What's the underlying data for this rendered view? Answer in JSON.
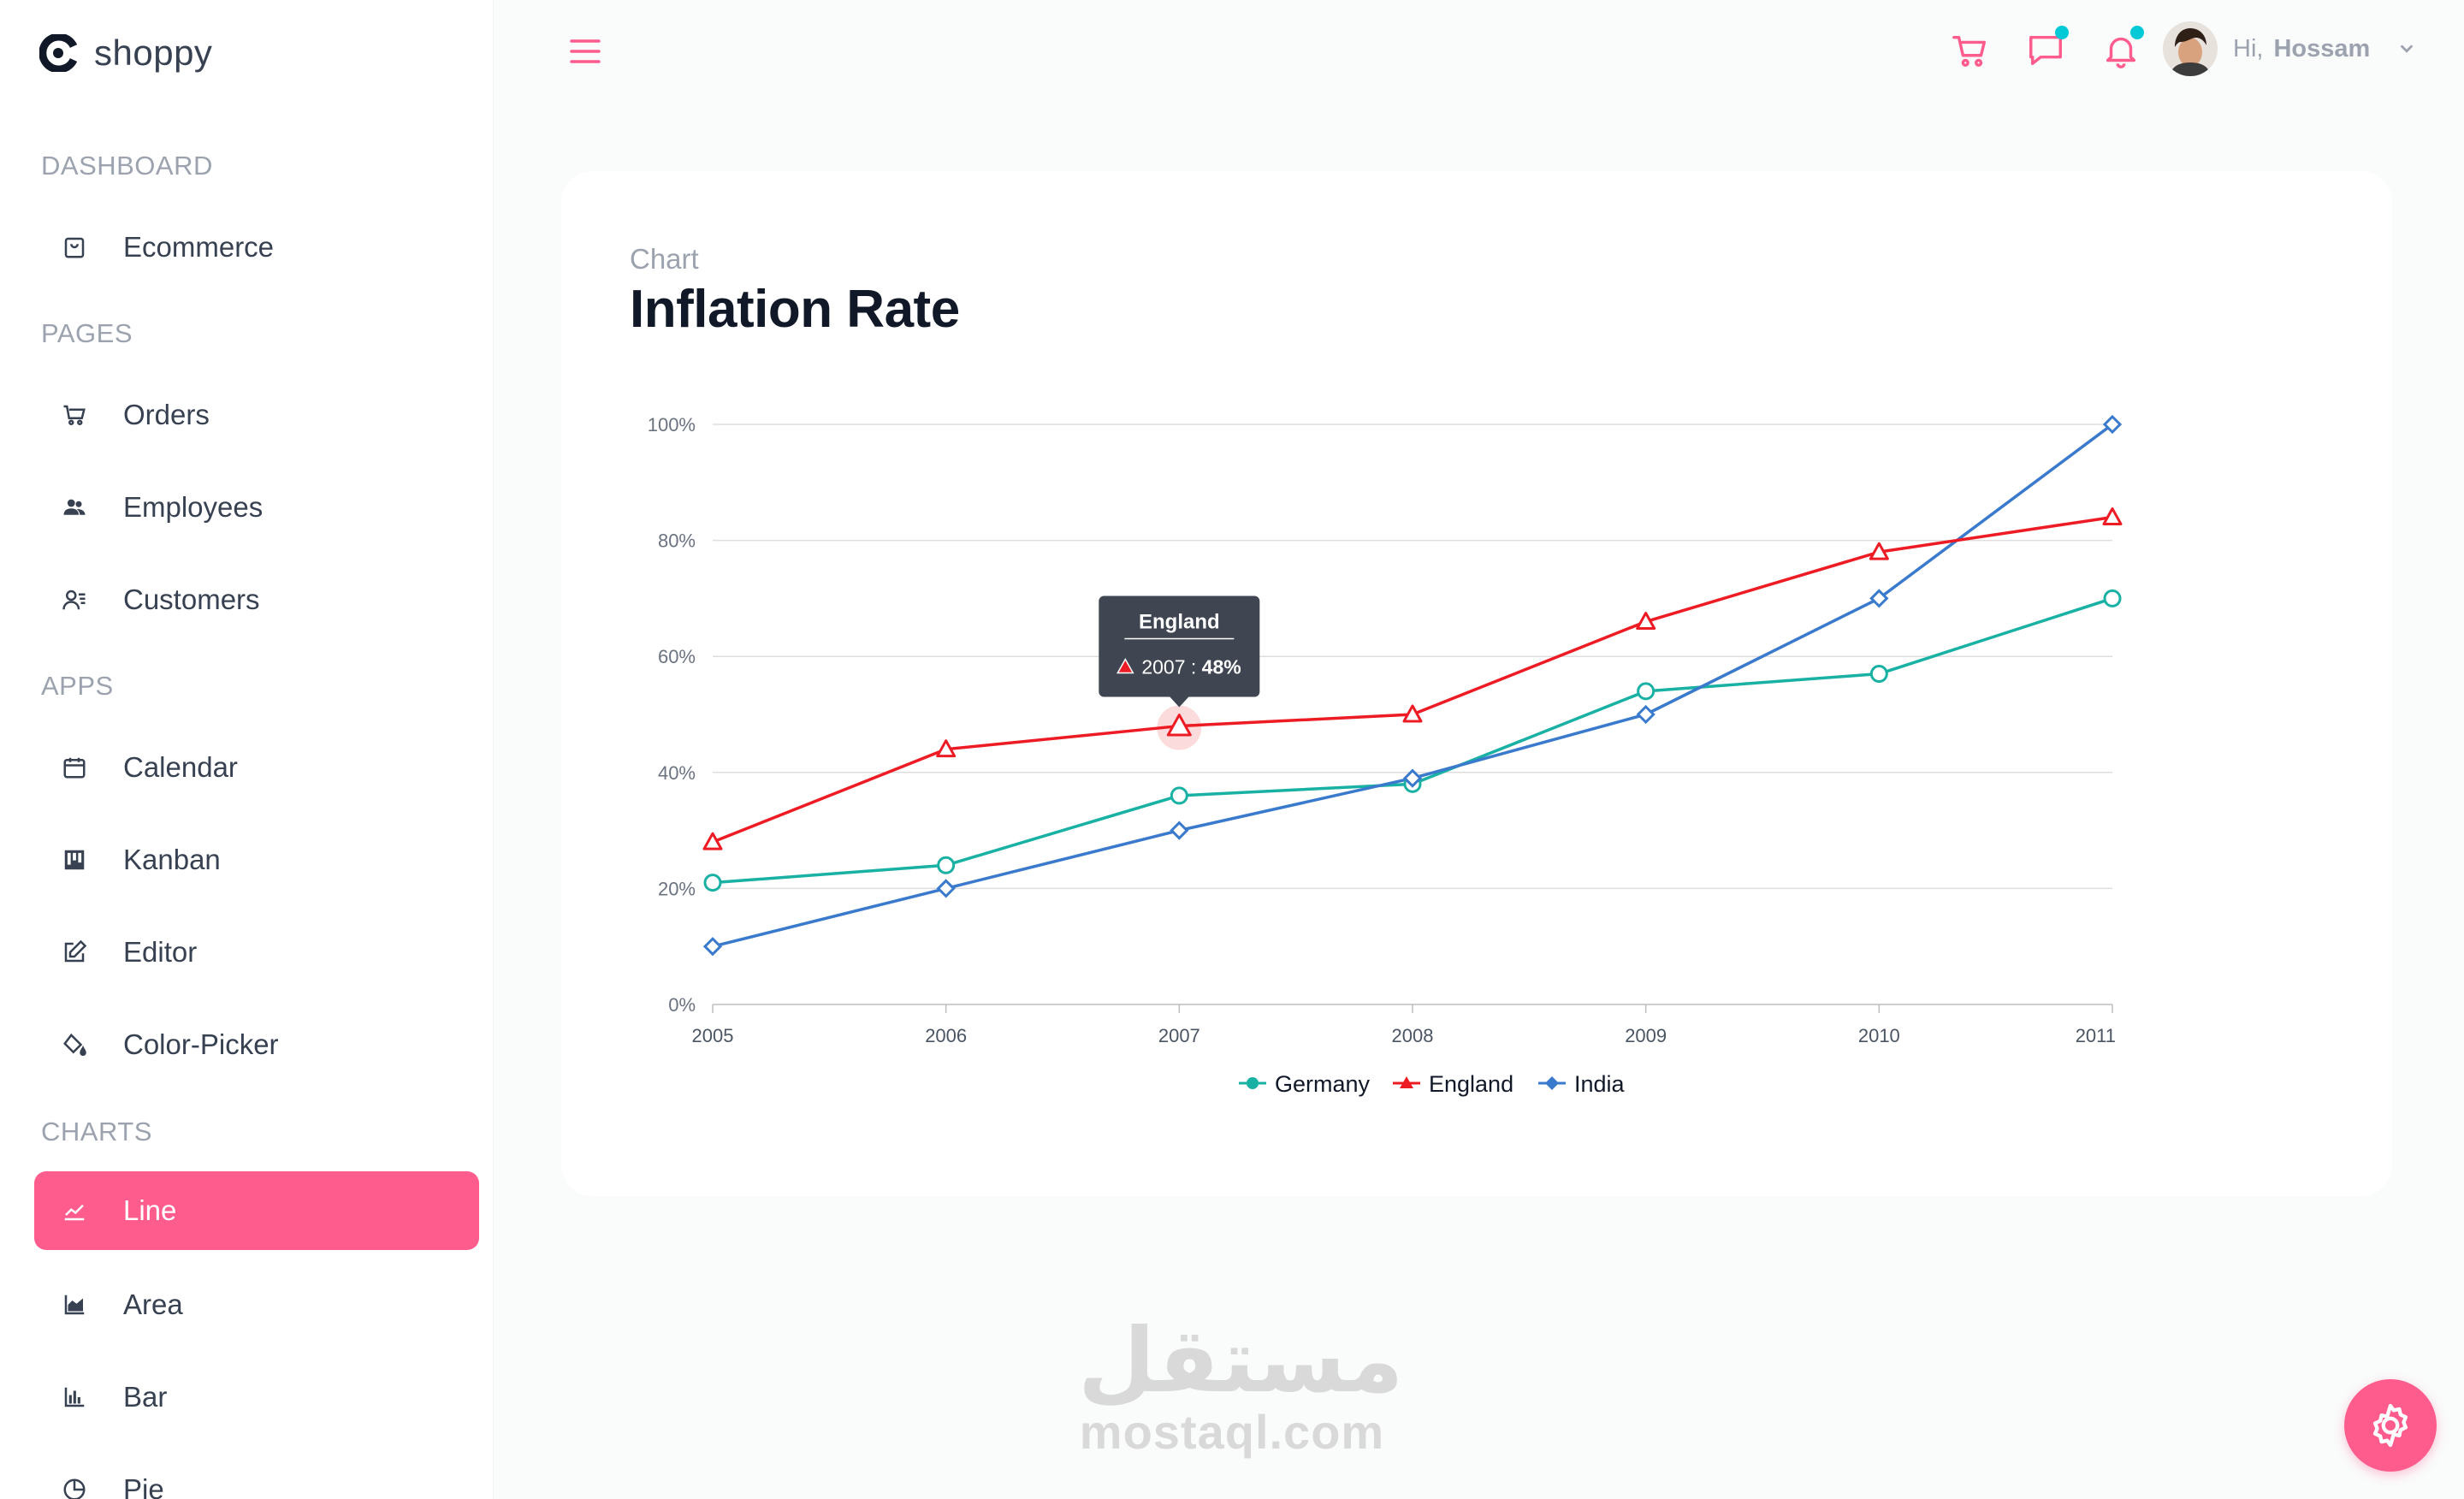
{
  "brand": {
    "name": "shoppy"
  },
  "sidebar": {
    "sections": [
      {
        "title": "DASHBOARD",
        "items": [
          {
            "label": "Ecommerce",
            "icon": "shopping-bag-icon"
          }
        ]
      },
      {
        "title": "PAGES",
        "items": [
          {
            "label": "Orders",
            "icon": "cart-icon"
          },
          {
            "label": "Employees",
            "icon": "people-icon"
          },
          {
            "label": "Customers",
            "icon": "customers-icon"
          }
        ]
      },
      {
        "title": "APPS",
        "items": [
          {
            "label": "Calendar",
            "icon": "calendar-icon"
          },
          {
            "label": "Kanban",
            "icon": "kanban-icon"
          },
          {
            "label": "Editor",
            "icon": "edit-icon"
          },
          {
            "label": "Color-Picker",
            "icon": "paint-bucket-icon"
          }
        ]
      },
      {
        "title": "CHARTS",
        "items": [
          {
            "label": "Line",
            "icon": "line-chart-icon",
            "active": true
          },
          {
            "label": "Area",
            "icon": "area-chart-icon"
          },
          {
            "label": "Bar",
            "icon": "bar-chart-icon"
          },
          {
            "label": "Pie",
            "icon": "pie-chart-icon"
          }
        ]
      }
    ]
  },
  "header": {
    "greeting": "Hi,",
    "user_name": "Hossam",
    "icons": [
      "menu-icon",
      "cart-icon",
      "chat-icon",
      "bell-icon",
      "chevron-down-icon"
    ]
  },
  "page": {
    "eyebrow": "Chart",
    "title": "Inflation Rate"
  },
  "chart_data": {
    "type": "line",
    "title": "Inflation Rate",
    "x": [
      2005,
      2006,
      2007,
      2008,
      2009,
      2010,
      2011
    ],
    "x_labels": [
      "2005",
      "2006",
      "2007",
      "2008",
      "2009",
      "2010",
      "2011"
    ],
    "y_ticks": [
      "0%",
      "20%",
      "40%",
      "60%",
      "80%",
      "100%"
    ],
    "ylim": [
      0,
      100
    ],
    "grid": "horizontal",
    "legend_position": "bottom",
    "series": [
      {
        "name": "Germany",
        "color": "#1ab1a5",
        "marker": "circle",
        "values": [
          21,
          24,
          36,
          38,
          54,
          57,
          70
        ]
      },
      {
        "name": "England",
        "color": "#ed1c24",
        "marker": "triangle",
        "values": [
          28,
          44,
          48,
          50,
          66,
          78,
          84
        ]
      },
      {
        "name": "India",
        "color": "#3a7acd",
        "marker": "diamond",
        "values": [
          10,
          20,
          30,
          39,
          50,
          70,
          100
        ]
      }
    ],
    "tooltip": {
      "series": "England",
      "x": "2007",
      "separator": " : ",
      "value": "48%"
    }
  },
  "watermark": {
    "arabic": "مستقل",
    "latin": "mostaql.com"
  },
  "colors": {
    "accent": "#ff5c8e",
    "notification_dot": "#03c9d7"
  }
}
